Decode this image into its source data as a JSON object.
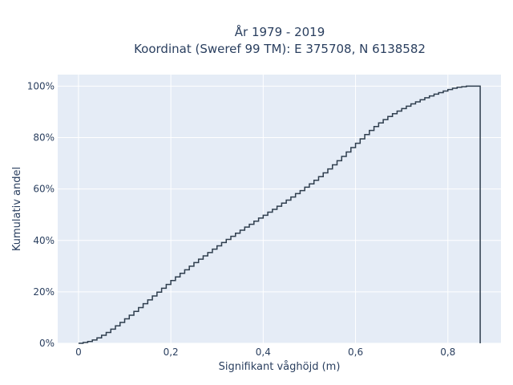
{
  "chart_data": {
    "type": "line",
    "subtype": "step-ecdf",
    "title_lines": [
      "År 1979 - 2019",
      "Koordinat (Sweref 99 TM): E 375708, N 6138582"
    ],
    "xlabel": "Signifikant våghöjd (m)",
    "ylabel": "Kumulativ andel",
    "xlim": [
      -0.045,
      0.915
    ],
    "ylim": [
      0,
      1.045
    ],
    "x_ticks": [
      0,
      0.2,
      0.4,
      0.6,
      0.8
    ],
    "x_tick_labels": [
      "0",
      "0,2",
      "0,4",
      "0,6",
      "0,8"
    ],
    "y_ticks": [
      0,
      0.2,
      0.4,
      0.6,
      0.8,
      1.0
    ],
    "y_tick_labels": [
      "0%",
      "20%",
      "40%",
      "60%",
      "80%",
      "100%"
    ],
    "grid": true,
    "legend": false,
    "series": [
      {
        "color": "#2f3e4e",
        "x": [
          0,
          0.01,
          0.02,
          0.03,
          0.04,
          0.05,
          0.06,
          0.07,
          0.08,
          0.09,
          0.1,
          0.11,
          0.12,
          0.13,
          0.14,
          0.15,
          0.16,
          0.17,
          0.18,
          0.19,
          0.2,
          0.21,
          0.22,
          0.23,
          0.24,
          0.25,
          0.26,
          0.27,
          0.28,
          0.29,
          0.3,
          0.31,
          0.32,
          0.33,
          0.34,
          0.35,
          0.36,
          0.37,
          0.38,
          0.39,
          0.4,
          0.41,
          0.42,
          0.43,
          0.44,
          0.45,
          0.46,
          0.47,
          0.48,
          0.49,
          0.5,
          0.51,
          0.52,
          0.53,
          0.54,
          0.55,
          0.56,
          0.57,
          0.58,
          0.59,
          0.6,
          0.61,
          0.62,
          0.63,
          0.64,
          0.65,
          0.66,
          0.67,
          0.68,
          0.69,
          0.7,
          0.71,
          0.72,
          0.73,
          0.74,
          0.75,
          0.76,
          0.77,
          0.78,
          0.79,
          0.8,
          0.81,
          0.82,
          0.83,
          0.84,
          0.85,
          0.86,
          0.87
        ],
        "y": [
          0.0,
          0.003,
          0.007,
          0.013,
          0.021,
          0.031,
          0.042,
          0.055,
          0.068,
          0.081,
          0.095,
          0.109,
          0.124,
          0.139,
          0.154,
          0.169,
          0.184,
          0.199,
          0.214,
          0.229,
          0.244,
          0.258,
          0.272,
          0.286,
          0.3,
          0.314,
          0.327,
          0.34,
          0.353,
          0.366,
          0.379,
          0.392,
          0.404,
          0.416,
          0.428,
          0.44,
          0.452,
          0.463,
          0.475,
          0.487,
          0.498,
          0.51,
          0.521,
          0.533,
          0.545,
          0.557,
          0.569,
          0.582,
          0.594,
          0.607,
          0.62,
          0.634,
          0.648,
          0.663,
          0.678,
          0.694,
          0.71,
          0.727,
          0.744,
          0.761,
          0.778,
          0.795,
          0.812,
          0.828,
          0.843,
          0.857,
          0.87,
          0.882,
          0.893,
          0.903,
          0.913,
          0.922,
          0.931,
          0.939,
          0.947,
          0.955,
          0.962,
          0.969,
          0.975,
          0.981,
          0.987,
          0.992,
          0.996,
          0.998,
          1.0,
          1.0,
          1.0,
          1.0
        ]
      }
    ]
  }
}
